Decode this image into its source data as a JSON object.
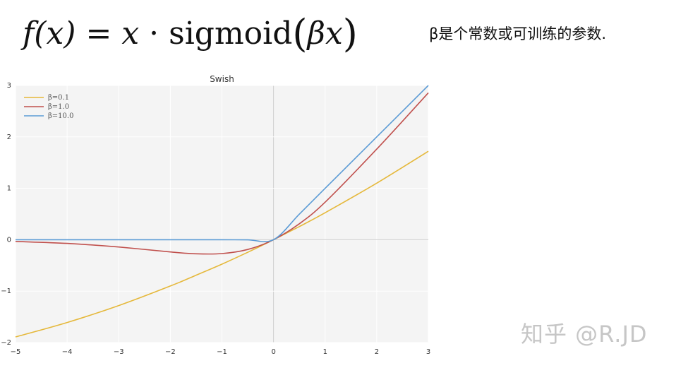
{
  "formula": {
    "lhs": "f(x)",
    "equals": "=",
    "x": "x",
    "dot": "·",
    "fn": "sigmoid",
    "open": "(",
    "arg": "βx",
    "close": ")"
  },
  "note": "β是个常数或可训练的参数.",
  "watermark": "知乎 @R.JD",
  "chart_data": {
    "type": "line",
    "title": "Swish",
    "xlabel": "",
    "ylabel": "",
    "xlim": [
      -5,
      3
    ],
    "ylim": [
      -2,
      3
    ],
    "xticks": [
      "−5",
      "−4",
      "−3",
      "−2",
      "−1",
      "0",
      "1",
      "2",
      "3"
    ],
    "yticks": [
      "−2",
      "−1",
      "0",
      "1",
      "2",
      "3"
    ],
    "grid": true,
    "legend_position": "top-left",
    "x": [
      -5,
      -4,
      -3,
      -2,
      -1.5,
      -1,
      -0.5,
      0,
      0.5,
      1,
      2,
      3
    ],
    "series": [
      {
        "name": "β=0.1",
        "color": "#e5b83a",
        "values": [
          -1.89,
          -1.61,
          -1.28,
          -0.9,
          -0.69,
          -0.475,
          -0.244,
          0,
          0.256,
          0.525,
          1.1,
          1.72
        ]
      },
      {
        "name": "β=1.0",
        "color": "#c0504d",
        "values": [
          -0.033,
          -0.072,
          -0.142,
          -0.238,
          -0.274,
          -0.269,
          -0.189,
          0,
          0.311,
          0.731,
          1.762,
          2.857
        ]
      },
      {
        "name": "β=10.0",
        "color": "#5b9bd5",
        "values": [
          0,
          0,
          0,
          0,
          0,
          0,
          -0.003,
          0,
          0.497,
          1.0,
          2.0,
          3.0
        ]
      }
    ]
  }
}
